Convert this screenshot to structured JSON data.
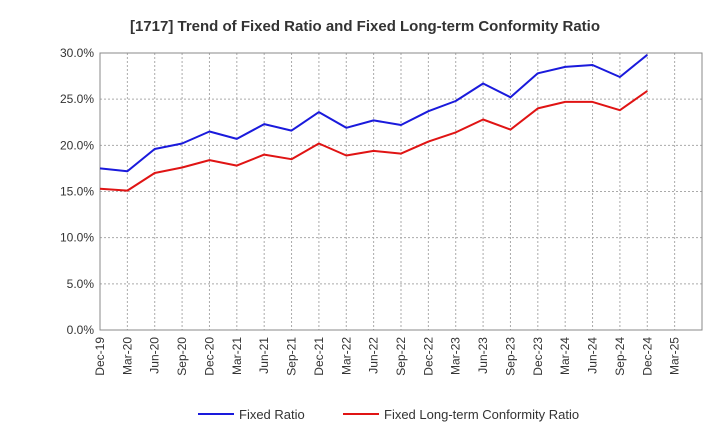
{
  "chart_data": {
    "type": "line",
    "title": "[1717]  Trend of Fixed Ratio and Fixed Long-term Conformity Ratio",
    "xlabel": "",
    "ylabel": "",
    "categories": [
      "Dec-19",
      "Mar-20",
      "Jun-20",
      "Sep-20",
      "Dec-20",
      "Mar-21",
      "Jun-21",
      "Sep-21",
      "Dec-21",
      "Mar-22",
      "Jun-22",
      "Sep-22",
      "Dec-22",
      "Mar-23",
      "Jun-23",
      "Sep-23",
      "Dec-23",
      "Mar-24",
      "Jun-24",
      "Sep-24",
      "Dec-24",
      "Mar-25"
    ],
    "ylim": [
      0,
      30
    ],
    "yticks": [
      "0.0%",
      "5.0%",
      "10.0%",
      "15.0%",
      "20.0%",
      "25.0%",
      "30.0%"
    ],
    "grid": true,
    "legend_position": "bottom",
    "series": [
      {
        "name": "Fixed Ratio",
        "color": "#1a1adc",
        "values": [
          17.5,
          17.2,
          19.6,
          20.2,
          21.5,
          20.7,
          22.3,
          21.6,
          23.6,
          21.9,
          22.7,
          22.2,
          23.7,
          24.8,
          26.7,
          25.2,
          27.8,
          28.5,
          28.7,
          27.4,
          29.8,
          null
        ]
      },
      {
        "name": "Fixed Long-term Conformity Ratio",
        "color": "#e01414",
        "values": [
          15.3,
          15.1,
          17.0,
          17.6,
          18.4,
          17.8,
          19.0,
          18.5,
          20.2,
          18.9,
          19.4,
          19.1,
          20.4,
          21.4,
          22.8,
          21.7,
          24.0,
          24.7,
          24.7,
          23.8,
          25.9,
          null
        ]
      }
    ]
  }
}
